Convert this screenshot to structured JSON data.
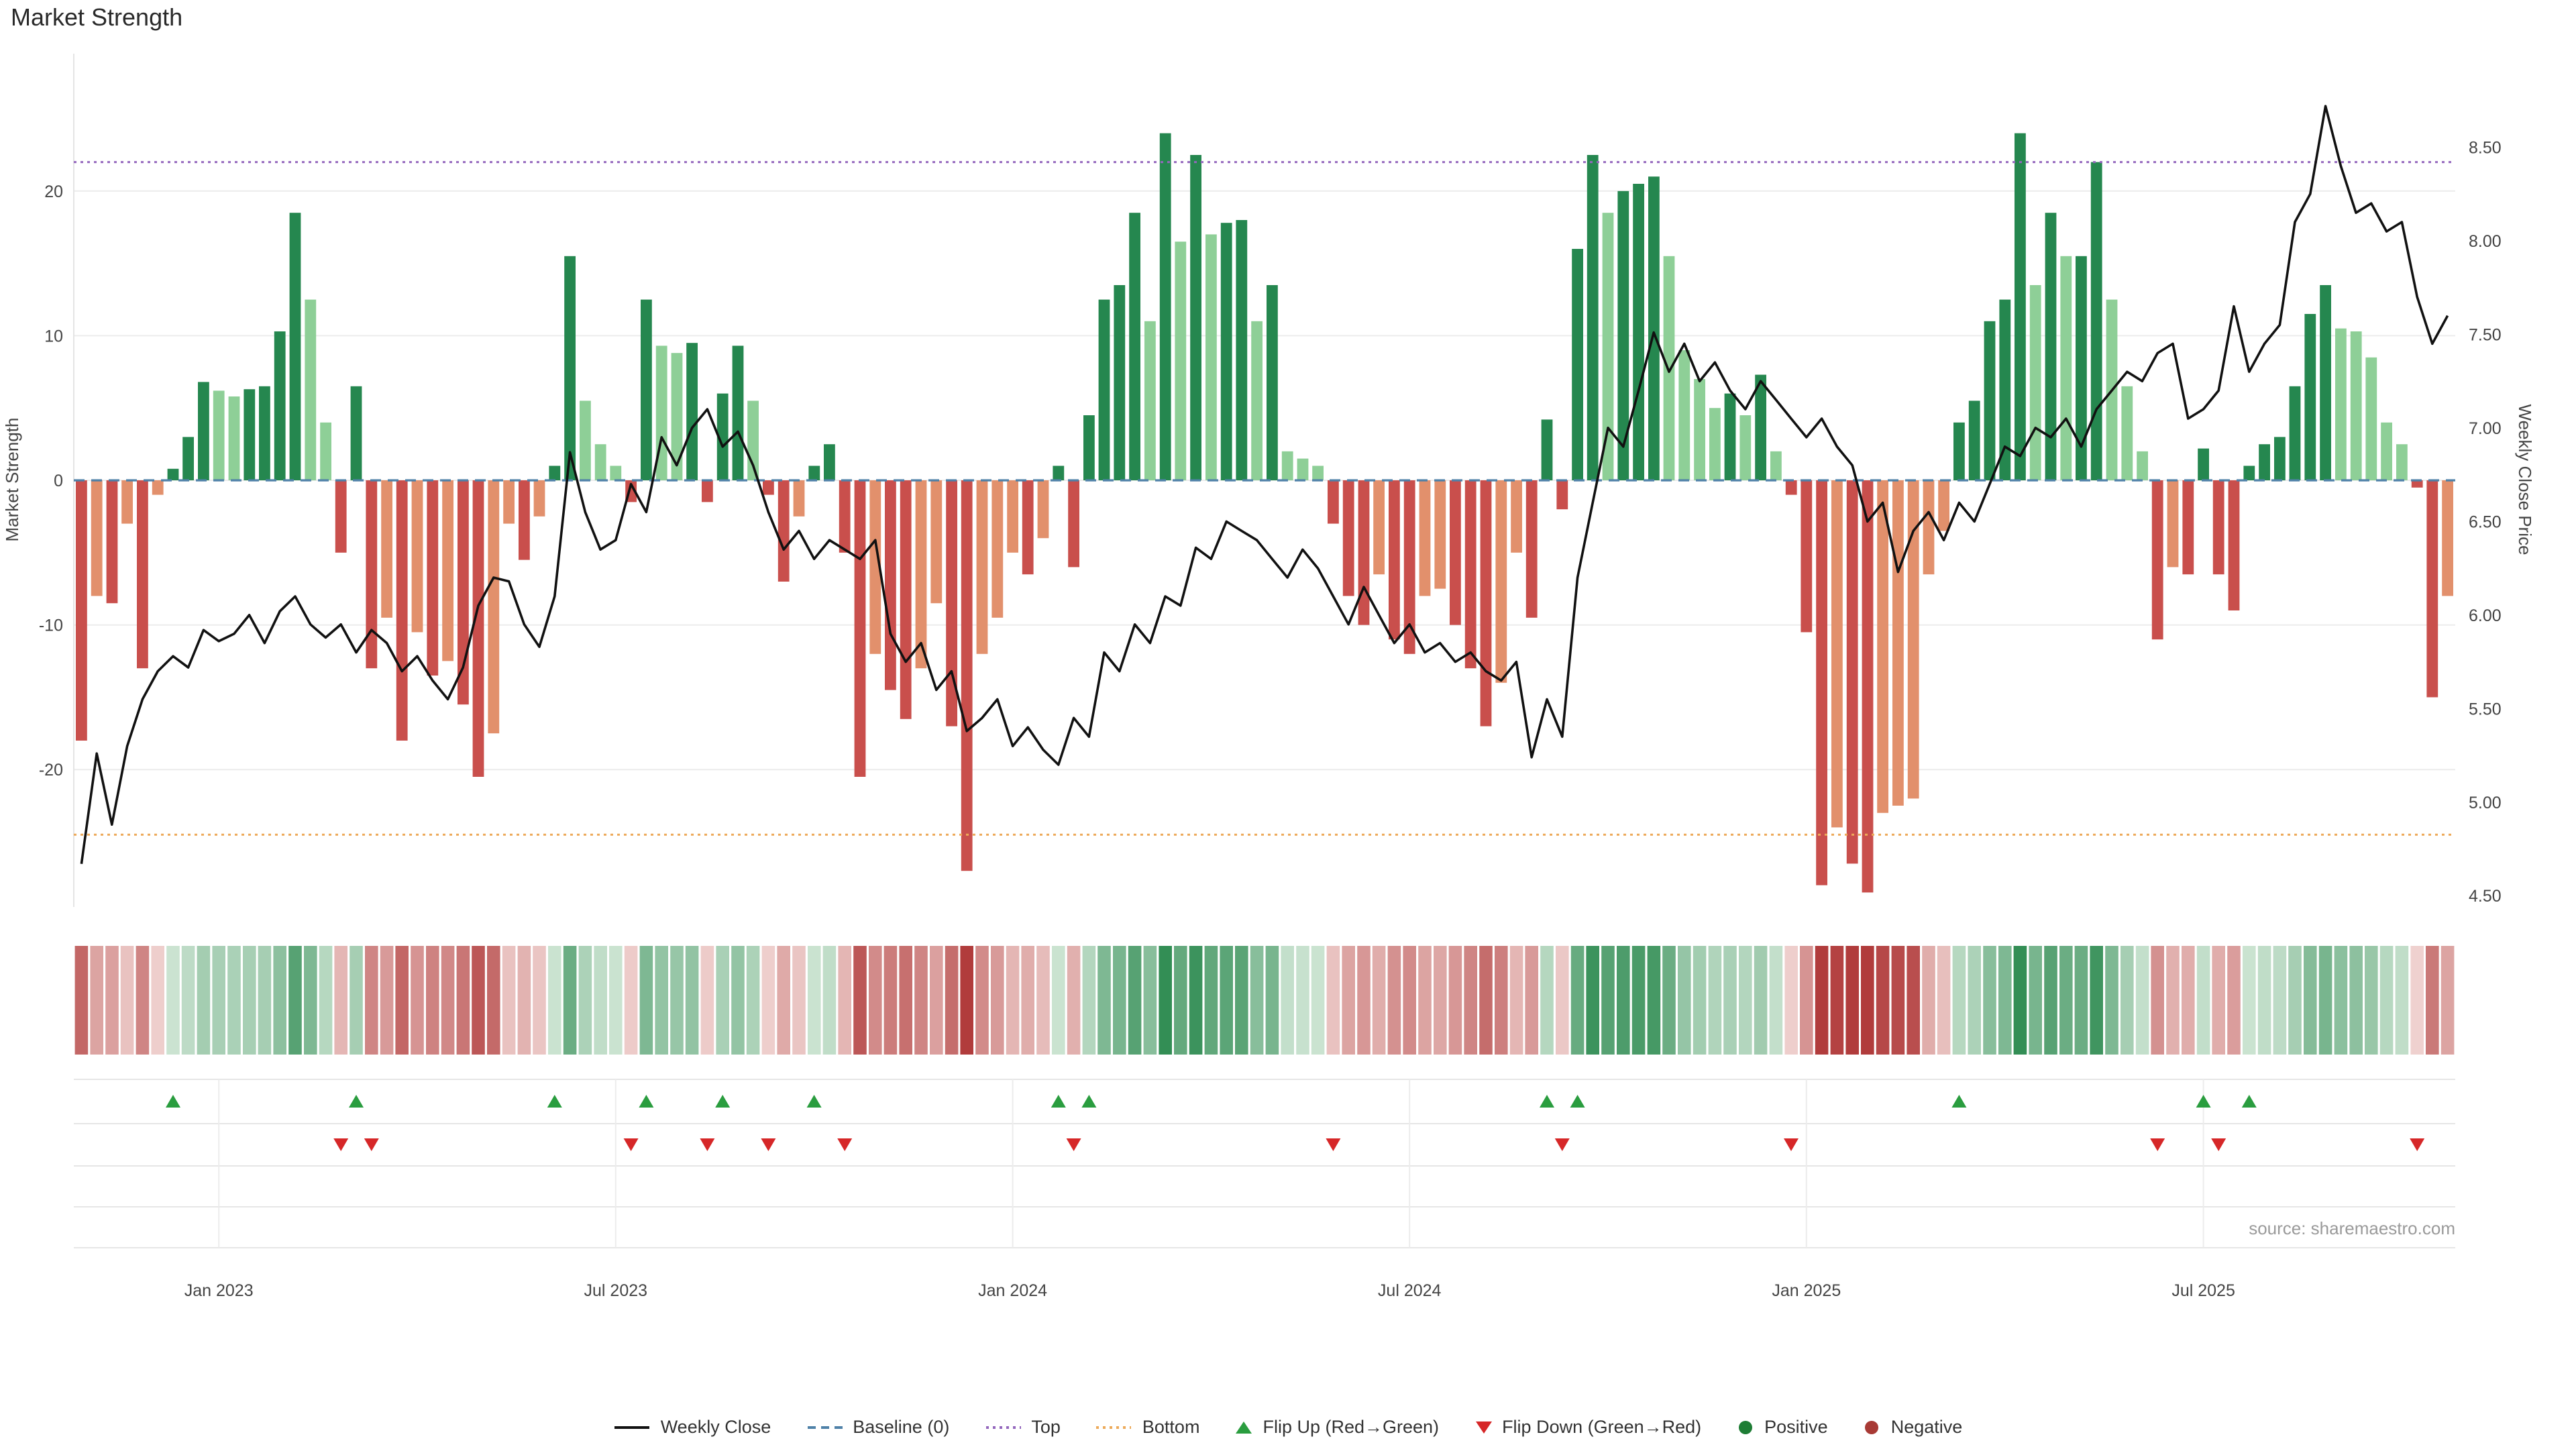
{
  "title": "Market Strength",
  "y_axis_left": {
    "label": "Market Strength",
    "ticks": [
      20,
      10,
      0,
      -10,
      -20
    ]
  },
  "y_axis_right": {
    "label": "Weekly Close Price",
    "ticks": [
      "8.50",
      "8.00",
      "7.50",
      "7.00",
      "6.50",
      "6.00",
      "5.50",
      "5.00",
      "4.50"
    ]
  },
  "source": "source: sharemaestro.com",
  "legend": {
    "items": [
      {
        "label": "Weekly Close",
        "type": "line",
        "color": "#111111"
      },
      {
        "label": "Baseline (0)",
        "type": "dash",
        "color": "#4f81a8"
      },
      {
        "label": "Top",
        "type": "dot",
        "color": "#9467bd"
      },
      {
        "label": "Bottom",
        "type": "dot",
        "color": "#edaa5a"
      },
      {
        "label": "Flip Up (Red→Green)",
        "type": "triangle-up",
        "color": "#2a9d3f"
      },
      {
        "label": "Flip Down (Green→Red)",
        "type": "triangle-down",
        "color": "#d62728"
      },
      {
        "label": "Positive",
        "type": "circle",
        "color": "#1e7d35"
      },
      {
        "label": "Negative",
        "type": "circle",
        "color": "#a83a35"
      }
    ]
  },
  "colors": {
    "bar_green_dark": "#25874f",
    "bar_green_light": "#8ecf97",
    "bar_red_dark": "#c94f4c",
    "bar_red_light": "#e2906c",
    "line": "#111111",
    "baseline": "#4f81a8",
    "top": "#9467bd",
    "bottom": "#edaa5a",
    "flip_up": "#2a9d3f",
    "flip_down": "#d62728",
    "grid": "#ececec",
    "axis_text": "#444444",
    "heat_green": "#2c8a50",
    "heat_red": "#b13c3c",
    "heat_green_faint": "#e7f3e8",
    "heat_red_faint": "#f9e9e6"
  },
  "chart_data": {
    "type": "bar+line",
    "title": "Market Strength",
    "x_ticks": [
      {
        "label": "Jan 2023",
        "week": 9
      },
      {
        "label": "Jul 2023",
        "week": 35
      },
      {
        "label": "Jan 2024",
        "week": 61
      },
      {
        "label": "Jul 2024",
        "week": 87
      },
      {
        "label": "Jan 2025",
        "week": 113
      },
      {
        "label": "Jul 2025",
        "week": 139
      }
    ],
    "weeks": 156,
    "strength_axis_range": [
      -29.5,
      29.5
    ],
    "price_axis_range": [
      4.44,
      9.0
    ],
    "baseline": 0,
    "top_threshold": 22,
    "bottom_threshold": -24.5,
    "strength": [
      -18,
      -8,
      -8.5,
      -3,
      -13,
      -1,
      0.8,
      3,
      6.8,
      6.2,
      5.8,
      6.3,
      6.5,
      10.3,
      18.5,
      12.5,
      4,
      -5,
      6.5,
      -13,
      -9.5,
      -18,
      -10.5,
      -13.5,
      -12.5,
      -15.5,
      -20.5,
      -17.5,
      -3,
      -5.5,
      -2.5,
      1,
      15.5,
      5.5,
      2.5,
      1,
      -1.5,
      12.5,
      9.3,
      8.8,
      9.5,
      -1.5,
      6,
      9.3,
      5.5,
      -1,
      -7,
      -2.5,
      1,
      2.5,
      -5,
      -20.5,
      -12,
      -14.5,
      -16.5,
      -13,
      -8.5,
      -17,
      -27,
      -12,
      -9.5,
      -5,
      -6.5,
      -4,
      1,
      -6,
      4.5,
      12.5,
      13.5,
      18.5,
      11,
      24,
      16.5,
      22.5,
      17,
      17.8,
      18,
      11,
      13.5,
      2,
      1.5,
      1,
      -3,
      -8,
      -10,
      -6.5,
      -11,
      -12,
      -8,
      -7.5,
      -10,
      -13,
      -17,
      -14,
      -5,
      -9.5,
      4.2,
      -2,
      16,
      22.5,
      18.5,
      20,
      20.5,
      21,
      15.5,
      9,
      7,
      5,
      6,
      4.5,
      7.3,
      2,
      -1,
      -10.5,
      -28,
      -24,
      -26.5,
      -28.5,
      -23,
      -22.5,
      -22,
      -6.5,
      -3.5,
      4,
      5.5,
      11,
      12.5,
      24,
      13.5,
      18.5,
      15.5,
      15.5,
      22,
      12.5,
      6.5,
      2,
      -11,
      -6,
      -6.5,
      2.2,
      -6.5,
      -9,
      1,
      2.5,
      3,
      6.5,
      11.5,
      13.5,
      10.5,
      10.3,
      8.5,
      4,
      2.5,
      -0.5,
      -15,
      -8
    ],
    "weekly_close": [
      4.67,
      5.26,
      4.88,
      5.3,
      5.55,
      5.7,
      5.78,
      5.72,
      5.92,
      5.86,
      5.9,
      6.0,
      5.85,
      6.02,
      6.1,
      5.95,
      5.88,
      5.95,
      5.8,
      5.92,
      5.85,
      5.7,
      5.78,
      5.65,
      5.55,
      5.72,
      6.05,
      6.2,
      6.18,
      5.95,
      5.83,
      6.1,
      6.87,
      6.55,
      6.35,
      6.4,
      6.7,
      6.55,
      6.95,
      6.8,
      7.0,
      7.1,
      6.9,
      6.98,
      6.8,
      6.55,
      6.35,
      6.45,
      6.3,
      6.4,
      6.35,
      6.3,
      6.4,
      5.9,
      5.75,
      5.85,
      5.6,
      5.7,
      5.38,
      5.45,
      5.55,
      5.3,
      5.4,
      5.28,
      5.2,
      5.45,
      5.35,
      5.8,
      5.7,
      5.95,
      5.85,
      6.1,
      6.05,
      6.36,
      6.3,
      6.5,
      6.45,
      6.4,
      6.3,
      6.2,
      6.35,
      6.25,
      6.1,
      5.95,
      6.15,
      6.0,
      5.85,
      5.95,
      5.8,
      5.85,
      5.75,
      5.8,
      5.7,
      5.65,
      5.75,
      5.24,
      5.55,
      5.35,
      6.2,
      6.6,
      7.0,
      6.9,
      7.2,
      7.51,
      7.3,
      7.45,
      7.25,
      7.35,
      7.2,
      7.1,
      7.25,
      7.15,
      7.05,
      6.95,
      7.05,
      6.9,
      6.8,
      6.5,
      6.6,
      6.23,
      6.45,
      6.55,
      6.4,
      6.6,
      6.5,
      6.7,
      6.9,
      6.85,
      7.0,
      6.95,
      7.05,
      6.9,
      7.1,
      7.2,
      7.3,
      7.25,
      7.4,
      7.45,
      7.05,
      7.1,
      7.2,
      7.65,
      7.3,
      7.45,
      7.55,
      8.1,
      8.25,
      8.72,
      8.4,
      8.15,
      8.2,
      8.05,
      8.1,
      7.7,
      7.45,
      7.6
    ],
    "flip_up_weeks": [
      6,
      18,
      31,
      37,
      42,
      48,
      64,
      66,
      96,
      98,
      123,
      139,
      142
    ],
    "flip_down_weeks": [
      17,
      19,
      36,
      41,
      45,
      50,
      65,
      82,
      97,
      112,
      136,
      140,
      153
    ]
  }
}
